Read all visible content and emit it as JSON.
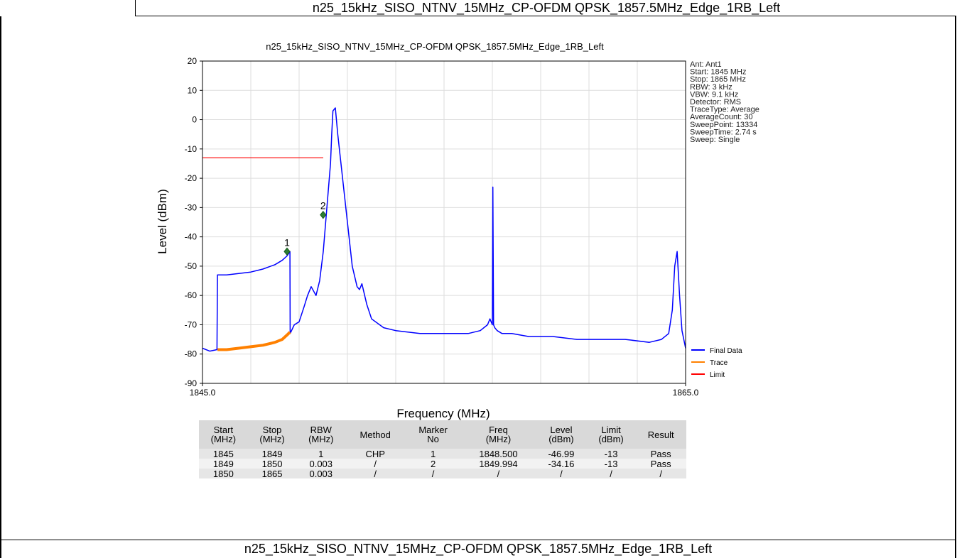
{
  "captions": {
    "top": "n25_15kHz_SISO_NTNV_15MHz_CP-OFDM QPSK_1857.5MHz_Edge_1RB_Left",
    "bottom": "n25_15kHz_SISO_NTNV_15MHz_CP-OFDM QPSK_1857.5MHz_Edge_1RB_Left"
  },
  "chart_data": {
    "type": "line",
    "title": "n25_15kHz_SISO_NTNV_15MHz_CP-OFDM QPSK_1857.5MHz_Edge_1RB_Left",
    "xlabel": "Frequency (MHz)",
    "ylabel": "Level (dBm)",
    "xlim": [
      1845.0,
      1865.0
    ],
    "ylim": [
      -90,
      20
    ],
    "x_tick_labels": [
      "1845.0",
      "1865.0"
    ],
    "y_ticks": [
      20,
      10,
      0,
      -10,
      -20,
      -30,
      -40,
      -50,
      -60,
      -70,
      -80,
      -90
    ],
    "grid": true,
    "legend_position": "bottom-right",
    "info_box": [
      "Ant: Ant1",
      "Start: 1845 MHz",
      "Stop: 1865 MHz",
      "RBW: 3 kHz",
      "VBW: 9.1 kHz",
      "Detector: RMS",
      "TraceType: Average",
      "AverageCount: 30",
      "SweepPoint: 13334",
      "SweepTime: 2.74 s",
      "Sweep: Single"
    ],
    "series": [
      {
        "name": "Final Data",
        "color": "#0000ff",
        "x": [
          1845.0,
          1845.3,
          1845.6,
          1845.62,
          1846.0,
          1846.5,
          1847.0,
          1847.5,
          1848.0,
          1848.3,
          1848.5,
          1848.62,
          1848.63,
          1848.8,
          1849.0,
          1849.2,
          1849.35,
          1849.5,
          1849.7,
          1849.85,
          1850.0,
          1850.1,
          1850.2,
          1850.3,
          1850.35,
          1850.4,
          1850.5,
          1850.6,
          1850.8,
          1851.0,
          1851.2,
          1851.4,
          1851.5,
          1851.6,
          1851.8,
          1852.0,
          1852.5,
          1853.0,
          1854.0,
          1855.0,
          1856.0,
          1856.5,
          1856.8,
          1856.9,
          1857.0,
          1857.02,
          1857.05,
          1857.1,
          1857.2,
          1857.4,
          1857.8,
          1858.5,
          1859.5,
          1860.5,
          1861.5,
          1862.5,
          1863.5,
          1864.0,
          1864.3,
          1864.45,
          1864.55,
          1864.65,
          1864.75,
          1864.85,
          1865.0
        ],
        "y": [
          -78,
          -79,
          -78.5,
          -53,
          -53,
          -52.5,
          -52,
          -51,
          -49.5,
          -48,
          -46.5,
          -45,
          -73,
          -70,
          -69,
          -64,
          -60,
          -57,
          -60,
          -55,
          -45,
          -35,
          -25,
          -15,
          -5,
          3,
          4,
          -5,
          -20,
          -35,
          -50,
          -57,
          -58,
          -56,
          -63,
          -68,
          -71,
          -72,
          -73,
          -73,
          -73,
          -72,
          -70,
          -68,
          -70,
          -23,
          -70,
          -71,
          -72,
          -73,
          -73,
          -74,
          -74,
          -75,
          -75,
          -75,
          -76,
          -75,
          -73,
          -65,
          -50,
          -45,
          -60,
          -72,
          -78
        ]
      },
      {
        "name": "Trace",
        "color": "#ff8000",
        "x": [
          1845.62,
          1846.0,
          1846.5,
          1847.0,
          1847.5,
          1848.0,
          1848.3,
          1848.5,
          1848.62
        ],
        "y": [
          -78.5,
          -78.5,
          -78,
          -77.5,
          -77,
          -76,
          -75,
          -73.5,
          -72.5
        ]
      },
      {
        "name": "Limit",
        "color": "#ff0000",
        "x": [
          1845.0,
          1850.0
        ],
        "y": [
          -13,
          -13
        ]
      }
    ],
    "markers": [
      {
        "label": "1",
        "x": 1848.5,
        "y": -45
      },
      {
        "label": "2",
        "x": 1849.994,
        "y": -32.5
      }
    ]
  },
  "table": {
    "headers": [
      [
        "Start",
        "(MHz)"
      ],
      [
        "Stop",
        "(MHz)"
      ],
      [
        "RBW",
        "(MHz)"
      ],
      [
        "Method"
      ],
      [
        "Marker",
        "No"
      ],
      [
        "Freq",
        "(MHz)"
      ],
      [
        "Level",
        "(dBm)"
      ],
      [
        "Limit",
        "(dBm)"
      ],
      [
        "Result"
      ]
    ],
    "rows": [
      [
        "1845",
        "1849",
        "1",
        "CHP",
        "1",
        "1848.500",
        "-46.99",
        "-13",
        "Pass"
      ],
      [
        "1849",
        "1850",
        "0.003",
        "/",
        "2",
        "1849.994",
        "-34.16",
        "-13",
        "Pass"
      ],
      [
        "1850",
        "1865",
        "0.003",
        "/",
        "/",
        "/",
        "/",
        "/",
        "/"
      ]
    ]
  }
}
